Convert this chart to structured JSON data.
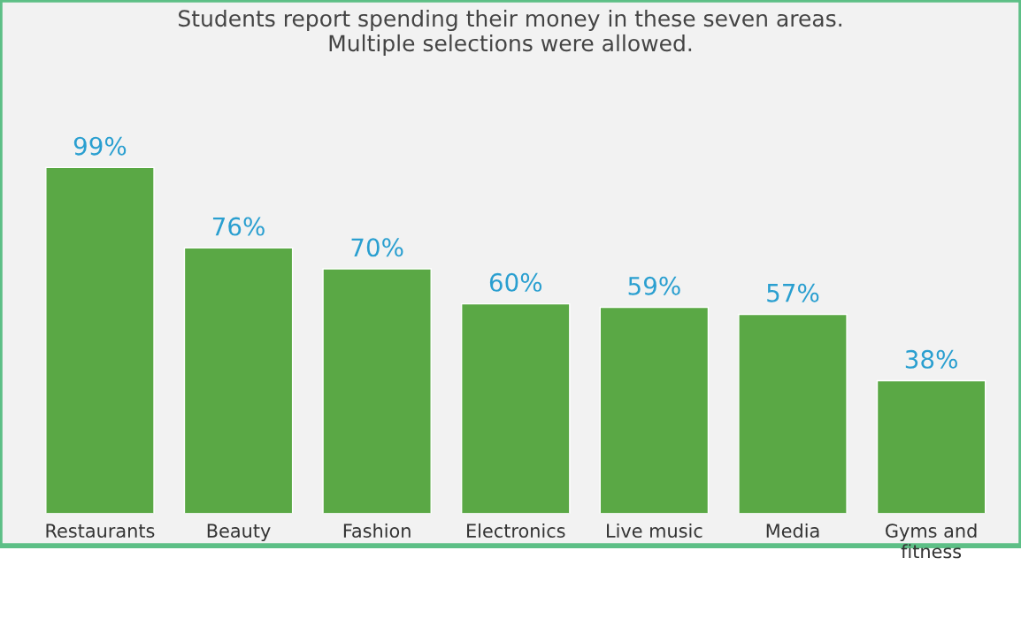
{
  "chart_data": {
    "type": "bar",
    "title": "Students report spending their money in these seven areas.\nMultiple selections were allowed.",
    "categories": [
      "Restaurants",
      "Beauty",
      "Fashion",
      "Electronics",
      "Live music",
      "Media",
      "Gyms and\nfitness"
    ],
    "values": [
      99,
      76,
      70,
      60,
      59,
      57,
      38
    ],
    "value_labels": [
      "99%",
      "76%",
      "70%",
      "60%",
      "59%",
      "57%",
      "38%"
    ],
    "color": "#5aa845",
    "grid": false,
    "legend": false
  }
}
